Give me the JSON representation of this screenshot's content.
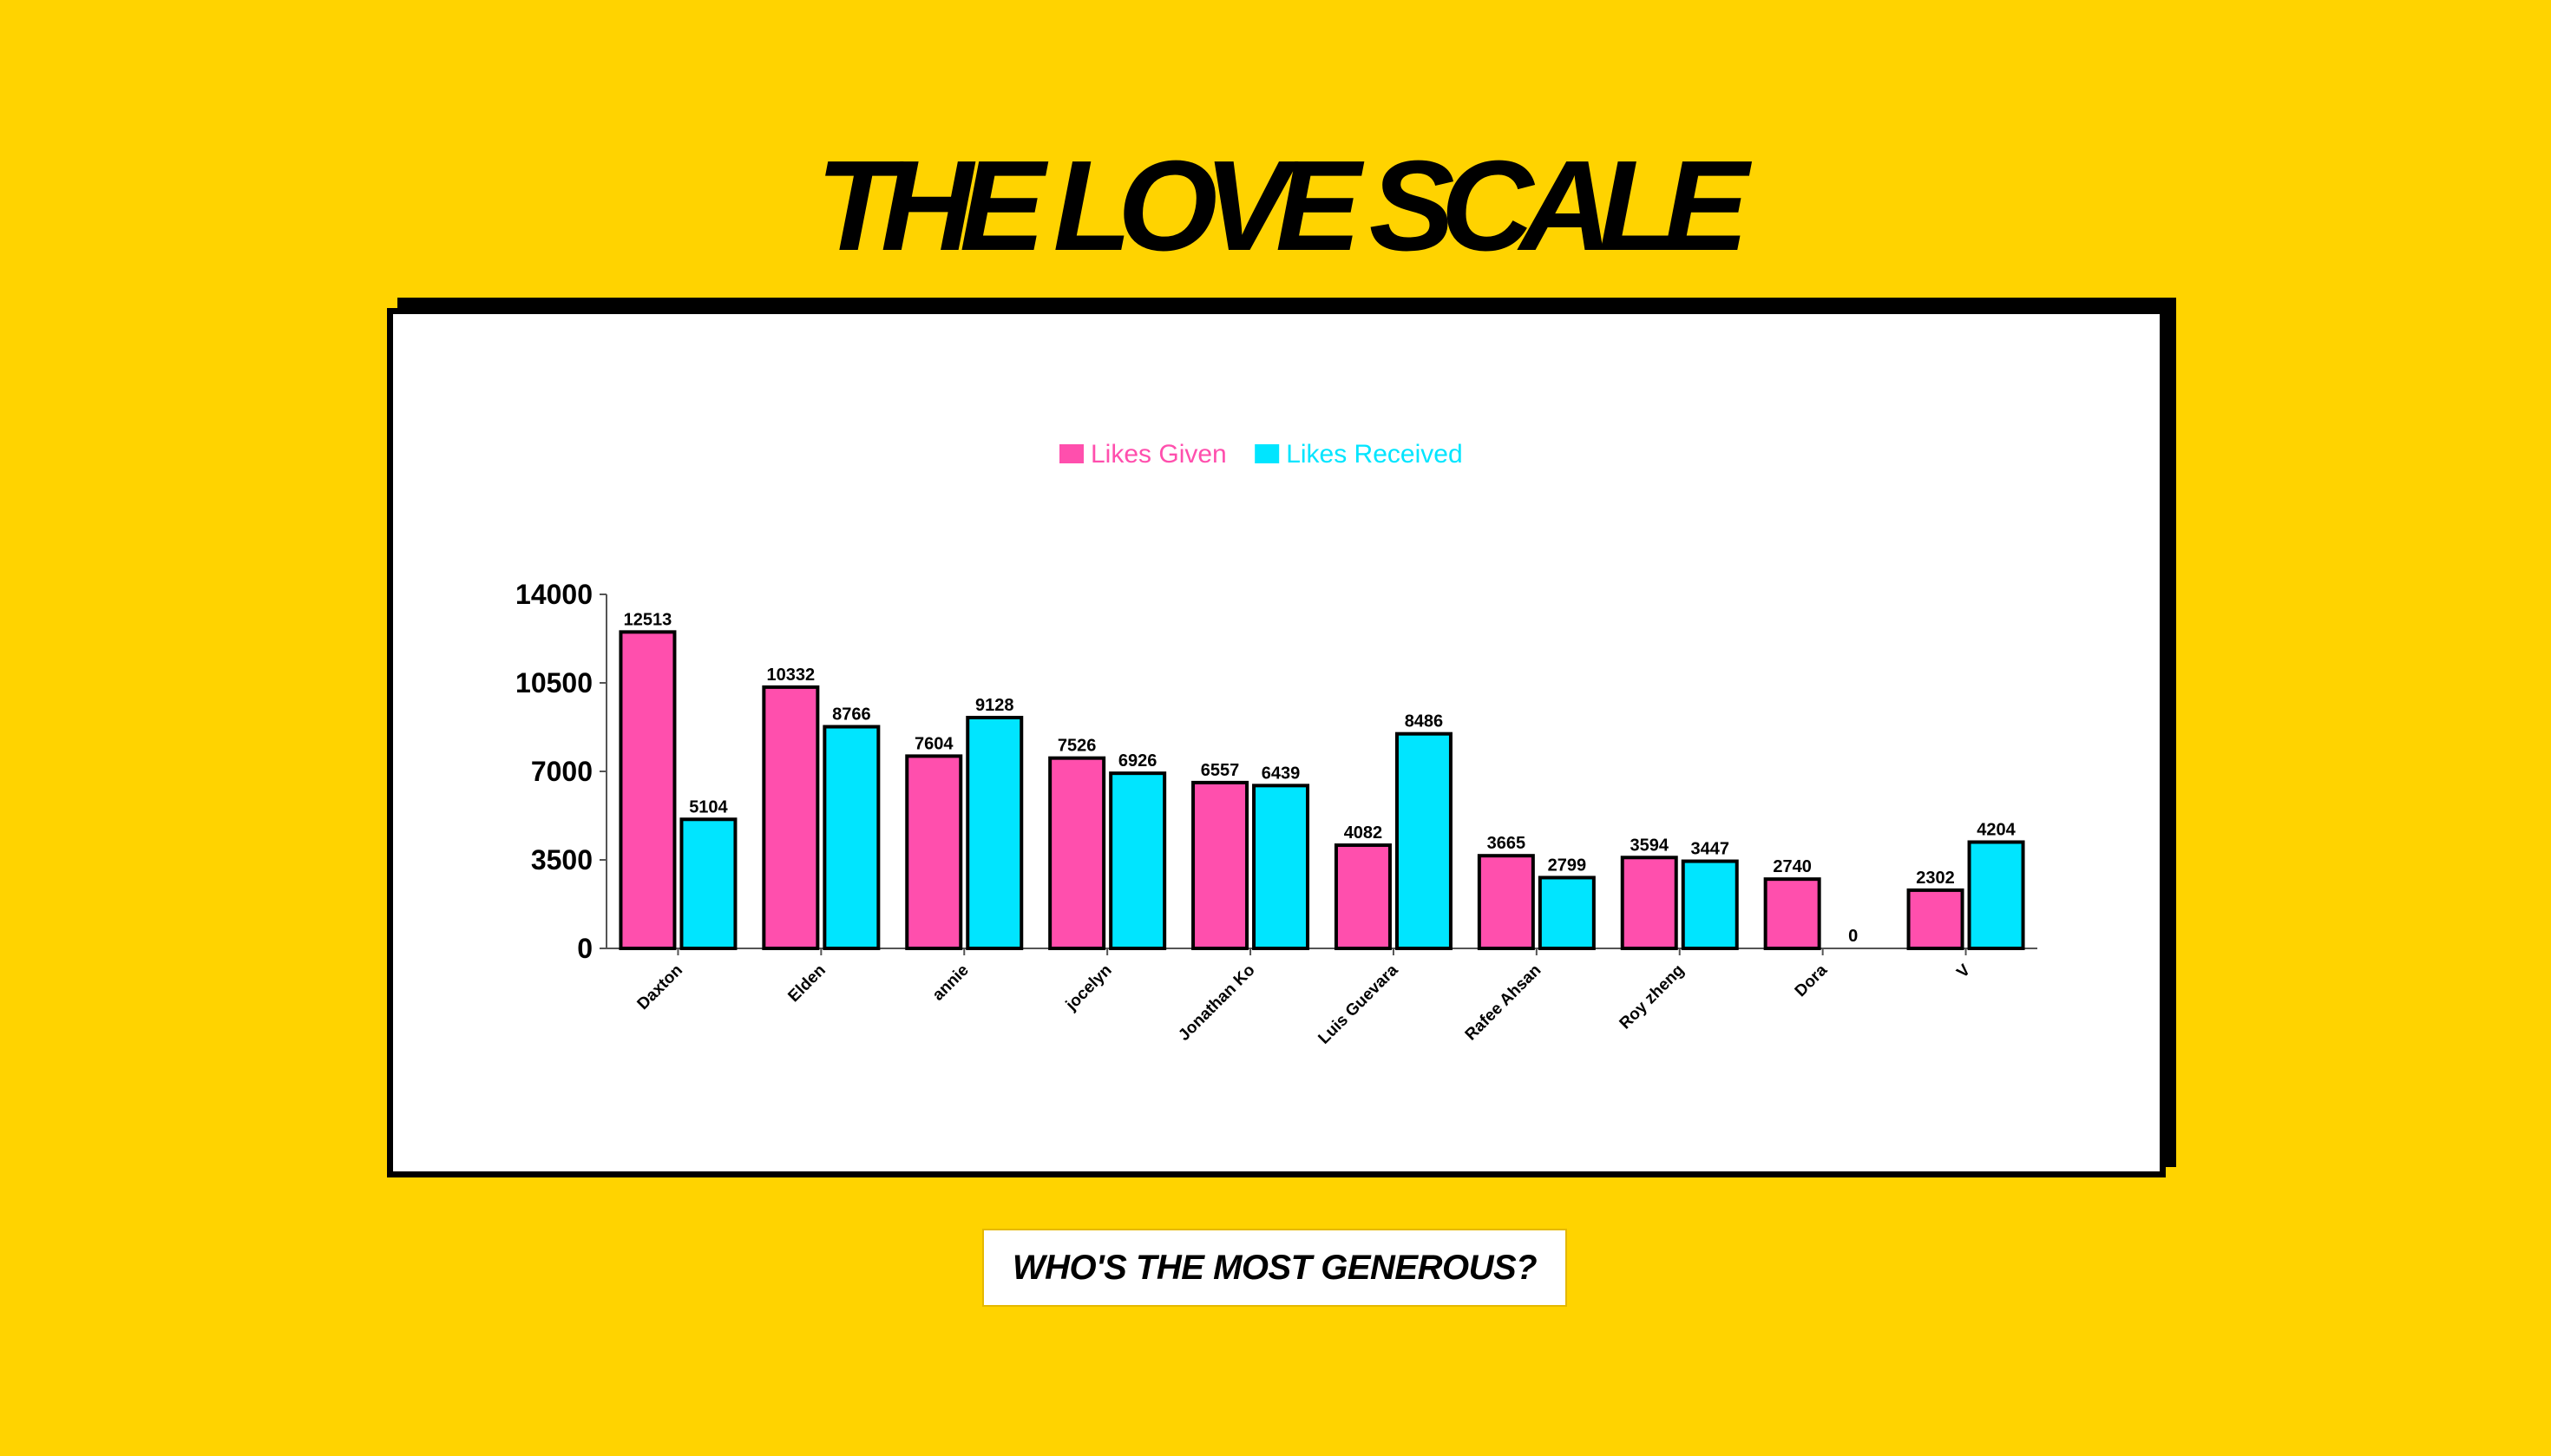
{
  "page": {
    "title": "THE LOVE SCALE",
    "subtitle": "WHO'S THE MOST GENEROUS?"
  },
  "colors": {
    "background": "#FFD300",
    "likes_given": "#FF4FAD",
    "likes_received": "#00E5FF",
    "outline": "#000000"
  },
  "chart_data": {
    "type": "bar",
    "title": "",
    "xlabel": "",
    "ylabel": "",
    "categories": [
      "Daxton",
      "Elden",
      "annie",
      "jocelyn",
      "Jonathan Ko",
      "Luis Guevara",
      "Rafee Ahsan",
      "Roy zheng",
      "Dora",
      "V"
    ],
    "series": [
      {
        "name": "Likes Given",
        "color": "#FF4FAD",
        "values": [
          12513,
          10332,
          7604,
          7526,
          6557,
          4082,
          3665,
          3594,
          2740,
          2302
        ]
      },
      {
        "name": "Likes Received",
        "color": "#00E5FF",
        "values": [
          5104,
          8766,
          9128,
          6926,
          6439,
          8486,
          2799,
          3447,
          0,
          4204
        ]
      }
    ],
    "ylim": [
      0,
      14000
    ],
    "yticks": [
      0,
      3500,
      7000,
      10500,
      14000
    ],
    "legend": "top-center",
    "grid": false,
    "data_labels": true
  }
}
